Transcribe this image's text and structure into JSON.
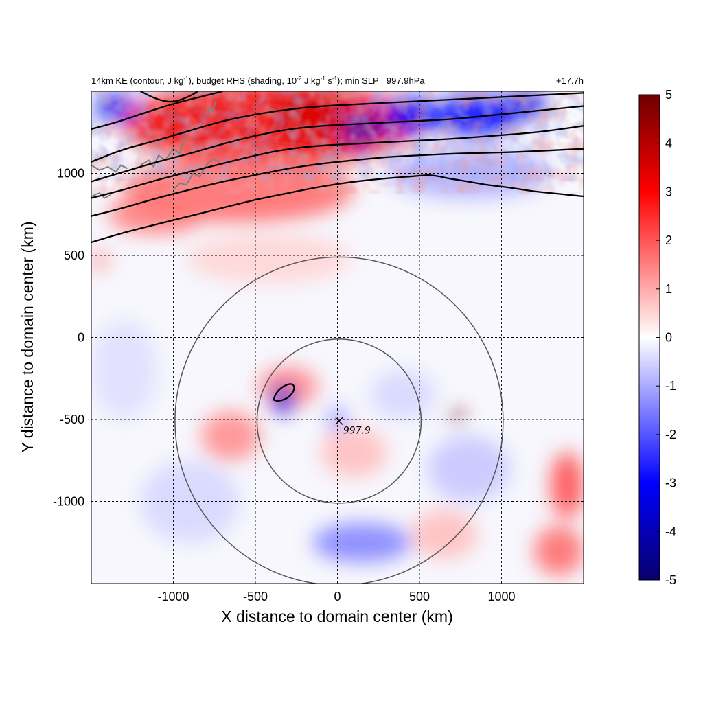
{
  "chart_data": {
    "type": "heatmap",
    "title": {
      "left_main": "14km KE (contour, J kg",
      "left_sup1": "-1",
      "left_mid": "), budget RHS (shading, 10",
      "left_sup2": "-2",
      "left_mid2": " J kg",
      "left_sup3": "-1",
      "left_mid3": " s",
      "left_sup4": "-1",
      "left_end": "); min SLP= 997.9hPa",
      "right": "+17.7h"
    },
    "xlabel": "X distance to domain center (km)",
    "ylabel": "Y distance to domain center (km)",
    "xlim": [
      -1500,
      1500
    ],
    "ylim": [
      -1500,
      1500
    ],
    "xticks": [
      -1000,
      -500,
      0,
      500,
      1000
    ],
    "xtick_labels": [
      "-1000",
      "-500",
      "0",
      "500",
      "1000"
    ],
    "yticks": [
      1000,
      500,
      0,
      -500,
      -1000
    ],
    "ytick_labels": [
      "1000",
      "500",
      "0",
      "-500",
      "-1000"
    ],
    "grid": true,
    "colorbar": {
      "range": [
        -5,
        5
      ],
      "ticks": [
        5,
        4,
        3,
        2,
        1,
        0,
        -1,
        -2,
        -3,
        -4,
        -5
      ],
      "tick_labels": [
        "5",
        "4",
        "3",
        "2",
        "1",
        "0",
        "-1",
        "-2",
        "-3",
        "-4",
        "-5"
      ],
      "colors": [
        "#08006a",
        "#0000ff",
        "#ffffff",
        "#ff0000",
        "#6e0000"
      ]
    },
    "storm_center": {
      "x": 10,
      "y": -510,
      "label": "997.9",
      "marker": "x-icon"
    },
    "range_rings_km": [
      500,
      1000
    ],
    "ke_contours": [
      {
        "name": "contour-1",
        "points": [
          [
            -1500,
            580
          ],
          [
            -1300,
            640
          ],
          [
            -1100,
            690
          ],
          [
            -900,
            740
          ],
          [
            -700,
            790
          ],
          [
            -500,
            840
          ],
          [
            -300,
            880
          ],
          [
            -100,
            920
          ],
          [
            100,
            950
          ],
          [
            300,
            970
          ],
          [
            500,
            985
          ],
          [
            550,
            990
          ],
          [
            600,
            985
          ],
          [
            650,
            975
          ],
          [
            700,
            965
          ],
          [
            800,
            950
          ],
          [
            900,
            930
          ],
          [
            1000,
            920
          ],
          [
            1100,
            905
          ],
          [
            1200,
            890
          ],
          [
            1300,
            880
          ],
          [
            1400,
            870
          ],
          [
            1500,
            860
          ]
        ]
      },
      {
        "name": "contour-2",
        "points": [
          [
            -1500,
            740
          ],
          [
            -1300,
            790
          ],
          [
            -1100,
            850
          ],
          [
            -900,
            900
          ],
          [
            -700,
            950
          ],
          [
            -500,
            990
          ],
          [
            -400,
            1010
          ],
          [
            -300,
            1030
          ],
          [
            -100,
            1060
          ],
          [
            100,
            1080
          ],
          [
            300,
            1100
          ],
          [
            500,
            1110
          ],
          [
            700,
            1120
          ],
          [
            900,
            1125
          ],
          [
            1100,
            1130
          ],
          [
            1300,
            1140
          ],
          [
            1500,
            1150
          ]
        ]
      },
      {
        "name": "contour-3",
        "points": [
          [
            -1500,
            850
          ],
          [
            -1300,
            900
          ],
          [
            -1100,
            960
          ],
          [
            -900,
            1010
          ],
          [
            -700,
            1060
          ],
          [
            -500,
            1110
          ],
          [
            -300,
            1150
          ],
          [
            -100,
            1170
          ],
          [
            100,
            1180
          ],
          [
            300,
            1190
          ],
          [
            500,
            1200
          ],
          [
            700,
            1210
          ],
          [
            900,
            1225
          ],
          [
            1100,
            1240
          ],
          [
            1300,
            1260
          ],
          [
            1500,
            1290
          ]
        ]
      },
      {
        "name": "contour-4",
        "points": [
          [
            -1500,
            950
          ],
          [
            -1300,
            1010
          ],
          [
            -1100,
            1070
          ],
          [
            -900,
            1120
          ],
          [
            -700,
            1180
          ],
          [
            -500,
            1230
          ],
          [
            -300,
            1270
          ],
          [
            -100,
            1290
          ],
          [
            100,
            1300
          ],
          [
            300,
            1310
          ],
          [
            500,
            1320
          ],
          [
            700,
            1330
          ],
          [
            900,
            1350
          ],
          [
            1100,
            1370
          ],
          [
            1300,
            1390
          ],
          [
            1500,
            1410
          ]
        ]
      },
      {
        "name": "contour-5",
        "points": [
          [
            -1500,
            1070
          ],
          [
            -1300,
            1150
          ],
          [
            -1100,
            1200
          ],
          [
            -900,
            1260
          ],
          [
            -700,
            1320
          ],
          [
            -500,
            1360
          ],
          [
            -300,
            1390
          ],
          [
            -100,
            1410
          ],
          [
            100,
            1420
          ],
          [
            300,
            1430
          ],
          [
            500,
            1440
          ],
          [
            700,
            1450
          ],
          [
            900,
            1460
          ],
          [
            1100,
            1470
          ],
          [
            1300,
            1480
          ],
          [
            1500,
            1490
          ]
        ]
      },
      {
        "name": "contour-6",
        "points": [
          [
            -1500,
            1270
          ],
          [
            -1350,
            1310
          ],
          [
            -1200,
            1360
          ],
          [
            -1050,
            1410
          ],
          [
            -900,
            1450
          ],
          [
            -800,
            1475
          ],
          [
            -700,
            1500
          ]
        ]
      },
      {
        "name": "contour-7",
        "points": [
          [
            -1200,
            1500
          ],
          [
            -1100,
            1450
          ],
          [
            -1000,
            1430
          ],
          [
            -900,
            1470
          ],
          [
            -850,
            1500
          ]
        ]
      },
      {
        "name": "contour-small-loop",
        "points": [
          [
            -390,
            -380
          ],
          [
            -370,
            -330
          ],
          [
            -320,
            -290
          ],
          [
            -270,
            -280
          ],
          [
            -260,
            -320
          ],
          [
            -300,
            -370
          ],
          [
            -360,
            -390
          ],
          [
            -390,
            -380
          ]
        ]
      }
    ],
    "shading_features": [
      {
        "x": -400,
        "y": 1300,
        "v": 3.2,
        "rx": 900,
        "ry": 250
      },
      {
        "x": -150,
        "y": 1350,
        "v": 3.5,
        "rx": 250,
        "ry": 150
      },
      {
        "x": 150,
        "y": 1270,
        "v": -4.0,
        "rx": 120,
        "ry": 100
      },
      {
        "x": -1350,
        "y": 1400,
        "v": -3.2,
        "rx": 120,
        "ry": 80
      },
      {
        "x": 450,
        "y": 1350,
        "v": -3.0,
        "rx": 180,
        "ry": 110
      },
      {
        "x": 850,
        "y": 1350,
        "v": -3.0,
        "rx": 250,
        "ry": 130
      },
      {
        "x": 1150,
        "y": 1420,
        "v": -3.2,
        "rx": 120,
        "ry": 80
      },
      {
        "x": -600,
        "y": 900,
        "v": 1.8,
        "rx": 700,
        "ry": 200
      },
      {
        "x": -1100,
        "y": 750,
        "v": 1.6,
        "rx": 300,
        "ry": 120
      },
      {
        "x": 800,
        "y": 1000,
        "v": -1.0,
        "rx": 500,
        "ry": 150
      },
      {
        "x": -1450,
        "y": 470,
        "v": 1.2,
        "rx": 60,
        "ry": 60
      },
      {
        "x": -420,
        "y": 480,
        "v": 0.5,
        "rx": 500,
        "ry": 150
      },
      {
        "x": -300,
        "y": -300,
        "v": 1.5,
        "rx": 180,
        "ry": 120
      },
      {
        "x": -330,
        "y": -380,
        "v": -3.5,
        "rx": 70,
        "ry": 90
      },
      {
        "x": -650,
        "y": -600,
        "v": 1.4,
        "rx": 180,
        "ry": 150
      },
      {
        "x": 730,
        "y": -480,
        "v": 4.8,
        "rx": 40,
        "ry": 40
      },
      {
        "x": 0,
        "y": -500,
        "v": -1.2,
        "rx": 60,
        "ry": 80
      },
      {
        "x": 100,
        "y": -700,
        "v": 0.8,
        "rx": 200,
        "ry": 150
      },
      {
        "x": 400,
        "y": -350,
        "v": -0.5,
        "rx": 200,
        "ry": 150
      },
      {
        "x": 800,
        "y": -800,
        "v": -0.7,
        "rx": 250,
        "ry": 200
      },
      {
        "x": 1400,
        "y": -900,
        "v": 2.2,
        "rx": 100,
        "ry": 200
      },
      {
        "x": 1350,
        "y": -1300,
        "v": 1.8,
        "rx": 150,
        "ry": 150
      },
      {
        "x": 150,
        "y": -1250,
        "v": -1.5,
        "rx": 300,
        "ry": 120
      },
      {
        "x": -900,
        "y": -1000,
        "v": -0.5,
        "rx": 300,
        "ry": 250
      },
      {
        "x": 650,
        "y": -1200,
        "v": 0.8,
        "rx": 200,
        "ry": 150
      },
      {
        "x": -1300,
        "y": -200,
        "v": -0.4,
        "rx": 200,
        "ry": 300
      }
    ],
    "coastlines": [
      {
        "name": "coast-1",
        "points": [
          [
            -1500,
            1050
          ],
          [
            -1450,
            1020
          ],
          [
            -1400,
            1040
          ],
          [
            -1350,
            1010
          ],
          [
            -1320,
            1050
          ],
          [
            -1280,
            1030
          ]
        ]
      },
      {
        "name": "coast-2",
        "points": [
          [
            -1200,
            1050
          ],
          [
            -1150,
            1080
          ],
          [
            -1120,
            1040
          ],
          [
            -1090,
            1110
          ],
          [
            -1050,
            1080
          ],
          [
            -1000,
            1150
          ],
          [
            -960,
            1120
          ],
          [
            -940,
            1200
          ],
          [
            -910,
            1230
          ]
        ]
      },
      {
        "name": "coast-3",
        "points": [
          [
            -1000,
            900
          ],
          [
            -960,
            940
          ],
          [
            -920,
            930
          ],
          [
            -880,
            1000
          ],
          [
            -840,
            980
          ],
          [
            -800,
            1050
          ],
          [
            -760,
            1090
          ],
          [
            -720,
            1070
          ]
        ]
      },
      {
        "name": "coast-4",
        "points": [
          [
            -1500,
            860
          ],
          [
            -1450,
            880
          ],
          [
            -1420,
            850
          ],
          [
            -1380,
            870
          ]
        ]
      },
      {
        "name": "coast-5",
        "points": [
          [
            -800,
            1350
          ],
          [
            -780,
            1400
          ],
          [
            -760,
            1380
          ],
          [
            -740,
            1440
          ]
        ]
      }
    ]
  }
}
